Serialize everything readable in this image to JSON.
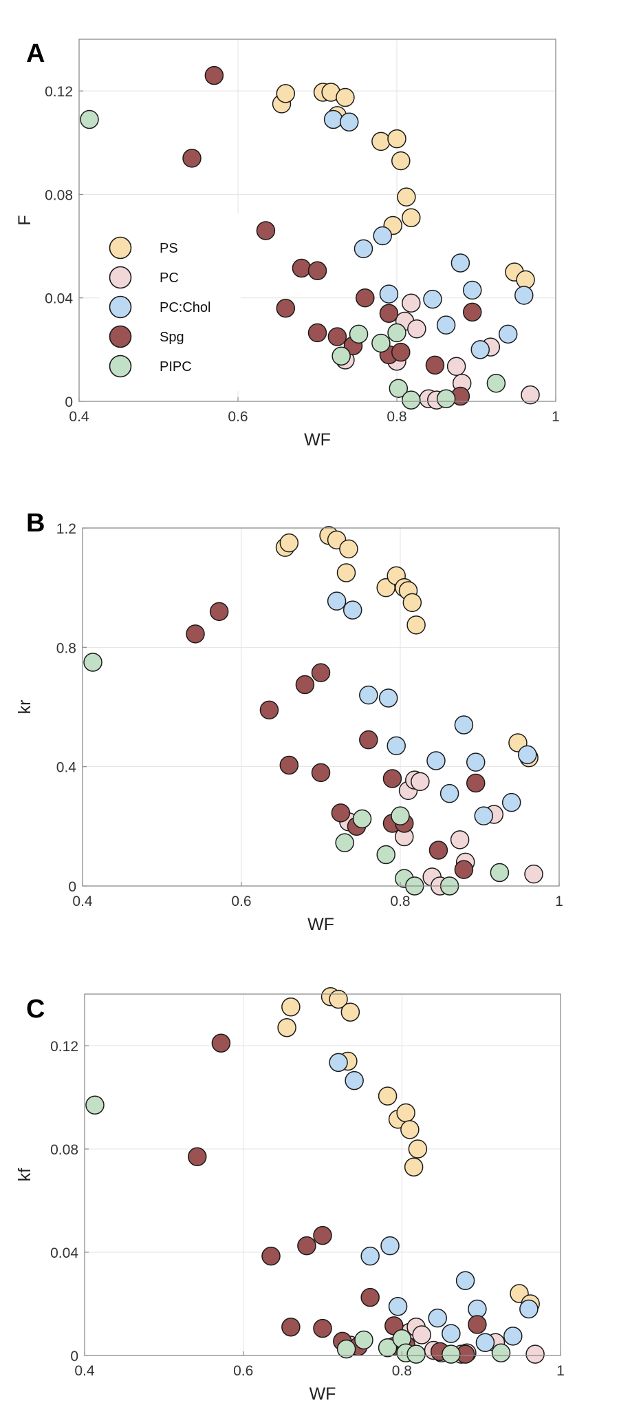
{
  "legend": {
    "entries": [
      {
        "name": "PS",
        "color": "#f9dfad"
      },
      {
        "name": "PC",
        "color": "#f2d7d8"
      },
      {
        "name": "PC:Chol",
        "color": "#bcd9f3"
      },
      {
        "name": "Spg",
        "color": "#9a5352"
      },
      {
        "name": "PIPC",
        "color": "#c2e0c6"
      }
    ]
  },
  "chart_data": [
    {
      "panel_label": "A",
      "type": "scatter",
      "xlabel": "WF",
      "ylabel": "F",
      "xlim": [
        0.4,
        1
      ],
      "ylim": [
        0,
        0.14
      ],
      "xticks": [
        0.4,
        0.6,
        0.8,
        1
      ],
      "xtick_labels": [
        "0.4",
        "0.6",
        "0.8",
        "1"
      ],
      "yticks": [
        0,
        0.04,
        0.08,
        0.12
      ],
      "ytick_labels": [
        "0",
        "0.04",
        "0.08",
        "0.12"
      ],
      "grid": true,
      "legend_position": "left",
      "series": [
        {
          "name": "PS",
          "color": "#f9dfad",
          "points": [
            [
              0.655,
              0.115
            ],
            [
              0.66,
              0.119
            ],
            [
              0.707,
              0.1195
            ],
            [
              0.717,
              0.1195
            ],
            [
              0.725,
              0.1105
            ],
            [
              0.735,
              0.1175
            ],
            [
              0.78,
              0.1005
            ],
            [
              0.8,
              0.1015
            ],
            [
              0.805,
              0.093
            ],
            [
              0.812,
              0.079
            ],
            [
              0.818,
              0.071
            ],
            [
              0.795,
              0.068
            ],
            [
              0.948,
              0.05
            ],
            [
              0.962,
              0.047
            ]
          ]
        },
        {
          "name": "PC",
          "color": "#f2d7d8",
          "points": [
            [
              0.735,
              0.016
            ],
            [
              0.8,
              0.0155
            ],
            [
              0.81,
              0.031
            ],
            [
              0.818,
              0.038
            ],
            [
              0.825,
              0.028
            ],
            [
              0.84,
              0.001
            ],
            [
              0.85,
              0.0005
            ],
            [
              0.875,
              0.0135
            ],
            [
              0.882,
              0.007
            ],
            [
              0.918,
              0.021
            ],
            [
              0.968,
              0.0025
            ]
          ]
        },
        {
          "name": "PC:Chol",
          "color": "#bcd9f3",
          "points": [
            [
              0.72,
              0.109
            ],
            [
              0.74,
              0.108
            ],
            [
              0.758,
              0.059
            ],
            [
              0.782,
              0.064
            ],
            [
              0.79,
              0.0415
            ],
            [
              0.845,
              0.0395
            ],
            [
              0.862,
              0.0295
            ],
            [
              0.88,
              0.0535
            ],
            [
              0.895,
              0.043
            ],
            [
              0.905,
              0.02
            ],
            [
              0.94,
              0.026
            ],
            [
              0.96,
              0.041
            ]
          ]
        },
        {
          "name": "Spg",
          "color": "#9a5352",
          "points": [
            [
              0.57,
              0.126
            ],
            [
              0.542,
              0.094
            ],
            [
              0.635,
              0.066
            ],
            [
              0.66,
              0.036
            ],
            [
              0.68,
              0.0515
            ],
            [
              0.7,
              0.0505
            ],
            [
              0.7,
              0.0265
            ],
            [
              0.725,
              0.025
            ],
            [
              0.745,
              0.0215
            ],
            [
              0.76,
              0.04
            ],
            [
              0.79,
              0.034
            ],
            [
              0.79,
              0.018
            ],
            [
              0.805,
              0.019
            ],
            [
              0.848,
              0.014
            ],
            [
              0.88,
              0.002
            ],
            [
              0.895,
              0.0345
            ]
          ]
        },
        {
          "name": "PIPC",
          "color": "#c2e0c6",
          "points": [
            [
              0.413,
              0.109
            ],
            [
              0.73,
              0.0175
            ],
            [
              0.752,
              0.026
            ],
            [
              0.78,
              0.0225
            ],
            [
              0.8,
              0.0265
            ],
            [
              0.802,
              0.005
            ],
            [
              0.818,
              0.0005
            ],
            [
              0.862,
              0.001
            ],
            [
              0.925,
              0.007
            ]
          ]
        }
      ]
    },
    {
      "panel_label": "B",
      "type": "scatter",
      "xlabel": "WF",
      "ylabel": "kr",
      "xlim": [
        0.4,
        1
      ],
      "ylim": [
        0,
        1.2
      ],
      "xticks": [
        0.4,
        0.6,
        0.8,
        1
      ],
      "xtick_labels": [
        "0.4",
        "0.6",
        "0.8",
        "1"
      ],
      "yticks": [
        0,
        0.4,
        0.8,
        1.2
      ],
      "ytick_labels": [
        "0",
        "0.4",
        "0.8",
        "1.2"
      ],
      "grid": true,
      "series": [
        {
          "name": "PS",
          "color": "#f9dfad",
          "points": [
            [
              0.655,
              1.135
            ],
            [
              0.66,
              1.15
            ],
            [
              0.71,
              1.175
            ],
            [
              0.72,
              1.16
            ],
            [
              0.735,
              1.13
            ],
            [
              0.732,
              1.05
            ],
            [
              0.782,
              1.0
            ],
            [
              0.795,
              1.04
            ],
            [
              0.805,
              1.0
            ],
            [
              0.81,
              0.99
            ],
            [
              0.815,
              0.95
            ],
            [
              0.82,
              0.875
            ],
            [
              0.948,
              0.48
            ],
            [
              0.962,
              0.43
            ]
          ]
        },
        {
          "name": "PC",
          "color": "#f2d7d8",
          "points": [
            [
              0.735,
              0.215
            ],
            [
              0.805,
              0.165
            ],
            [
              0.81,
              0.32
            ],
            [
              0.818,
              0.355
            ],
            [
              0.825,
              0.35
            ],
            [
              0.84,
              0.03
            ],
            [
              0.85,
              0.0
            ],
            [
              0.875,
              0.155
            ],
            [
              0.882,
              0.08
            ],
            [
              0.918,
              0.24
            ],
            [
              0.968,
              0.04
            ]
          ]
        },
        {
          "name": "PC:Chol",
          "color": "#bcd9f3",
          "points": [
            [
              0.72,
              0.955
            ],
            [
              0.74,
              0.925
            ],
            [
              0.76,
              0.64
            ],
            [
              0.785,
              0.63
            ],
            [
              0.795,
              0.47
            ],
            [
              0.845,
              0.42
            ],
            [
              0.862,
              0.31
            ],
            [
              0.88,
              0.54
            ],
            [
              0.895,
              0.415
            ],
            [
              0.905,
              0.235
            ],
            [
              0.94,
              0.28
            ],
            [
              0.96,
              0.44
            ]
          ]
        },
        {
          "name": "Spg",
          "color": "#9a5352",
          "points": [
            [
              0.572,
              0.92
            ],
            [
              0.542,
              0.845
            ],
            [
              0.635,
              0.59
            ],
            [
              0.66,
              0.405
            ],
            [
              0.68,
              0.675
            ],
            [
              0.7,
              0.715
            ],
            [
              0.7,
              0.38
            ],
            [
              0.725,
              0.245
            ],
            [
              0.745,
              0.2
            ],
            [
              0.76,
              0.49
            ],
            [
              0.79,
              0.36
            ],
            [
              0.79,
              0.21
            ],
            [
              0.805,
              0.21
            ],
            [
              0.848,
              0.12
            ],
            [
              0.88,
              0.055
            ],
            [
              0.895,
              0.345
            ]
          ]
        },
        {
          "name": "PIPC",
          "color": "#c2e0c6",
          "points": [
            [
              0.413,
              0.75
            ],
            [
              0.73,
              0.145
            ],
            [
              0.752,
              0.225
            ],
            [
              0.782,
              0.105
            ],
            [
              0.8,
              0.235
            ],
            [
              0.805,
              0.025
            ],
            [
              0.818,
              0.0
            ],
            [
              0.862,
              0.0
            ],
            [
              0.925,
              0.045
            ]
          ]
        }
      ]
    },
    {
      "panel_label": "C",
      "type": "scatter",
      "xlabel": "WF",
      "ylabel": "kf",
      "xlim": [
        0.4,
        1
      ],
      "ylim": [
        0,
        0.14
      ],
      "xticks": [
        0.4,
        0.6,
        0.8,
        1
      ],
      "xtick_labels": [
        "0.4",
        "0.6",
        "0.8",
        "1"
      ],
      "yticks": [
        0,
        0.04,
        0.08,
        0.12
      ],
      "ytick_labels": [
        "0",
        "0.04",
        "0.08",
        "0.12"
      ],
      "grid": true,
      "series": [
        {
          "name": "PS",
          "color": "#f9dfad",
          "points": [
            [
              0.655,
              0.127
            ],
            [
              0.66,
              0.135
            ],
            [
              0.71,
              0.139
            ],
            [
              0.72,
              0.138
            ],
            [
              0.735,
              0.133
            ],
            [
              0.732,
              0.114
            ],
            [
              0.782,
              0.1005
            ],
            [
              0.795,
              0.0915
            ],
            [
              0.805,
              0.094
            ],
            [
              0.81,
              0.0875
            ],
            [
              0.815,
              0.073
            ],
            [
              0.82,
              0.08
            ],
            [
              0.948,
              0.024
            ],
            [
              0.962,
              0.02
            ]
          ]
        },
        {
          "name": "PC",
          "color": "#f2d7d8",
          "points": [
            [
              0.735,
              0.004
            ],
            [
              0.805,
              0.004
            ],
            [
              0.81,
              0.009
            ],
            [
              0.818,
              0.011
            ],
            [
              0.825,
              0.008
            ],
            [
              0.84,
              0.002
            ],
            [
              0.85,
              0.001
            ],
            [
              0.875,
              0.0005
            ],
            [
              0.882,
              0.001
            ],
            [
              0.918,
              0.005
            ],
            [
              0.968,
              0.0005
            ]
          ]
        },
        {
          "name": "PC:Chol",
          "color": "#bcd9f3",
          "points": [
            [
              0.72,
              0.1135
            ],
            [
              0.74,
              0.1065
            ],
            [
              0.76,
              0.0385
            ],
            [
              0.785,
              0.0425
            ],
            [
              0.795,
              0.019
            ],
            [
              0.845,
              0.0145
            ],
            [
              0.862,
              0.0085
            ],
            [
              0.88,
              0.029
            ],
            [
              0.895,
              0.018
            ],
            [
              0.905,
              0.005
            ],
            [
              0.94,
              0.0075
            ],
            [
              0.96,
              0.018
            ]
          ]
        },
        {
          "name": "Spg",
          "color": "#9a5352",
          "points": [
            [
              0.572,
              0.121
            ],
            [
              0.542,
              0.077
            ],
            [
              0.635,
              0.0385
            ],
            [
              0.66,
              0.011
            ],
            [
              0.68,
              0.0425
            ],
            [
              0.7,
              0.0465
            ],
            [
              0.7,
              0.0105
            ],
            [
              0.725,
              0.0055
            ],
            [
              0.745,
              0.0035
            ],
            [
              0.76,
              0.0225
            ],
            [
              0.79,
              0.0115
            ],
            [
              0.79,
              0.0035
            ],
            [
              0.805,
              0.004
            ],
            [
              0.848,
              0.0015
            ],
            [
              0.88,
              0.0005
            ],
            [
              0.895,
              0.012
            ]
          ]
        },
        {
          "name": "PIPC",
          "color": "#c2e0c6",
          "points": [
            [
              0.413,
              0.097
            ],
            [
              0.73,
              0.0025
            ],
            [
              0.752,
              0.006
            ],
            [
              0.782,
              0.003
            ],
            [
              0.8,
              0.0065
            ],
            [
              0.805,
              0.001
            ],
            [
              0.818,
              0.0005
            ],
            [
              0.862,
              0.0005
            ],
            [
              0.925,
              0.001
            ]
          ]
        }
      ]
    }
  ]
}
